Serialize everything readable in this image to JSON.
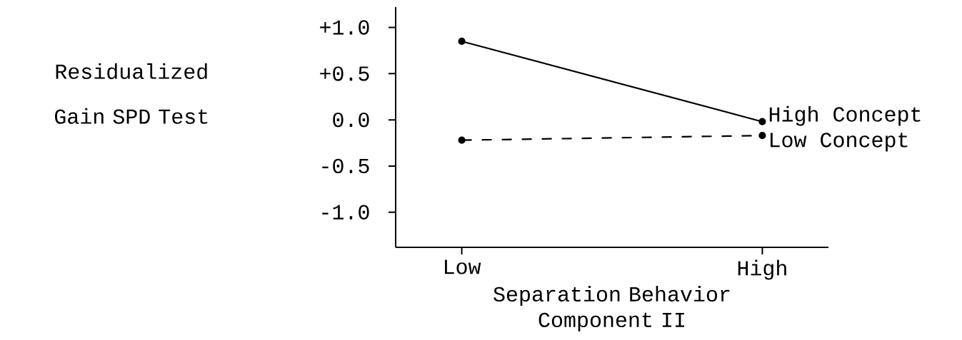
{
  "chart_data": {
    "type": "line",
    "ylabel": "Residualized Gain SPD Test",
    "xlabel": "Separation Behavior Component II",
    "categories": [
      "Low",
      "High"
    ],
    "series": [
      {
        "name": "High Concept",
        "color": "#000000",
        "values": [
          0.85,
          -0.02
        ],
        "line_style": "solid"
      },
      {
        "name": "Low Concept",
        "color": "#000000",
        "values": [
          -0.22,
          -0.17
        ],
        "line_style": "dashed"
      }
    ],
    "ylim": [
      -1.38,
      1.22
    ],
    "yticks": [
      {
        "value": 1.0,
        "label": "+1.0"
      },
      {
        "value": 0.5,
        "label": "+0.5"
      },
      {
        "value": 0.0,
        "label": "0.0"
      },
      {
        "value": -0.5,
        "label": "-0.5"
      },
      {
        "value": -1.0,
        "label": "-1.0"
      }
    ],
    "marker": "circle",
    "grid": false,
    "legend": "right"
  }
}
